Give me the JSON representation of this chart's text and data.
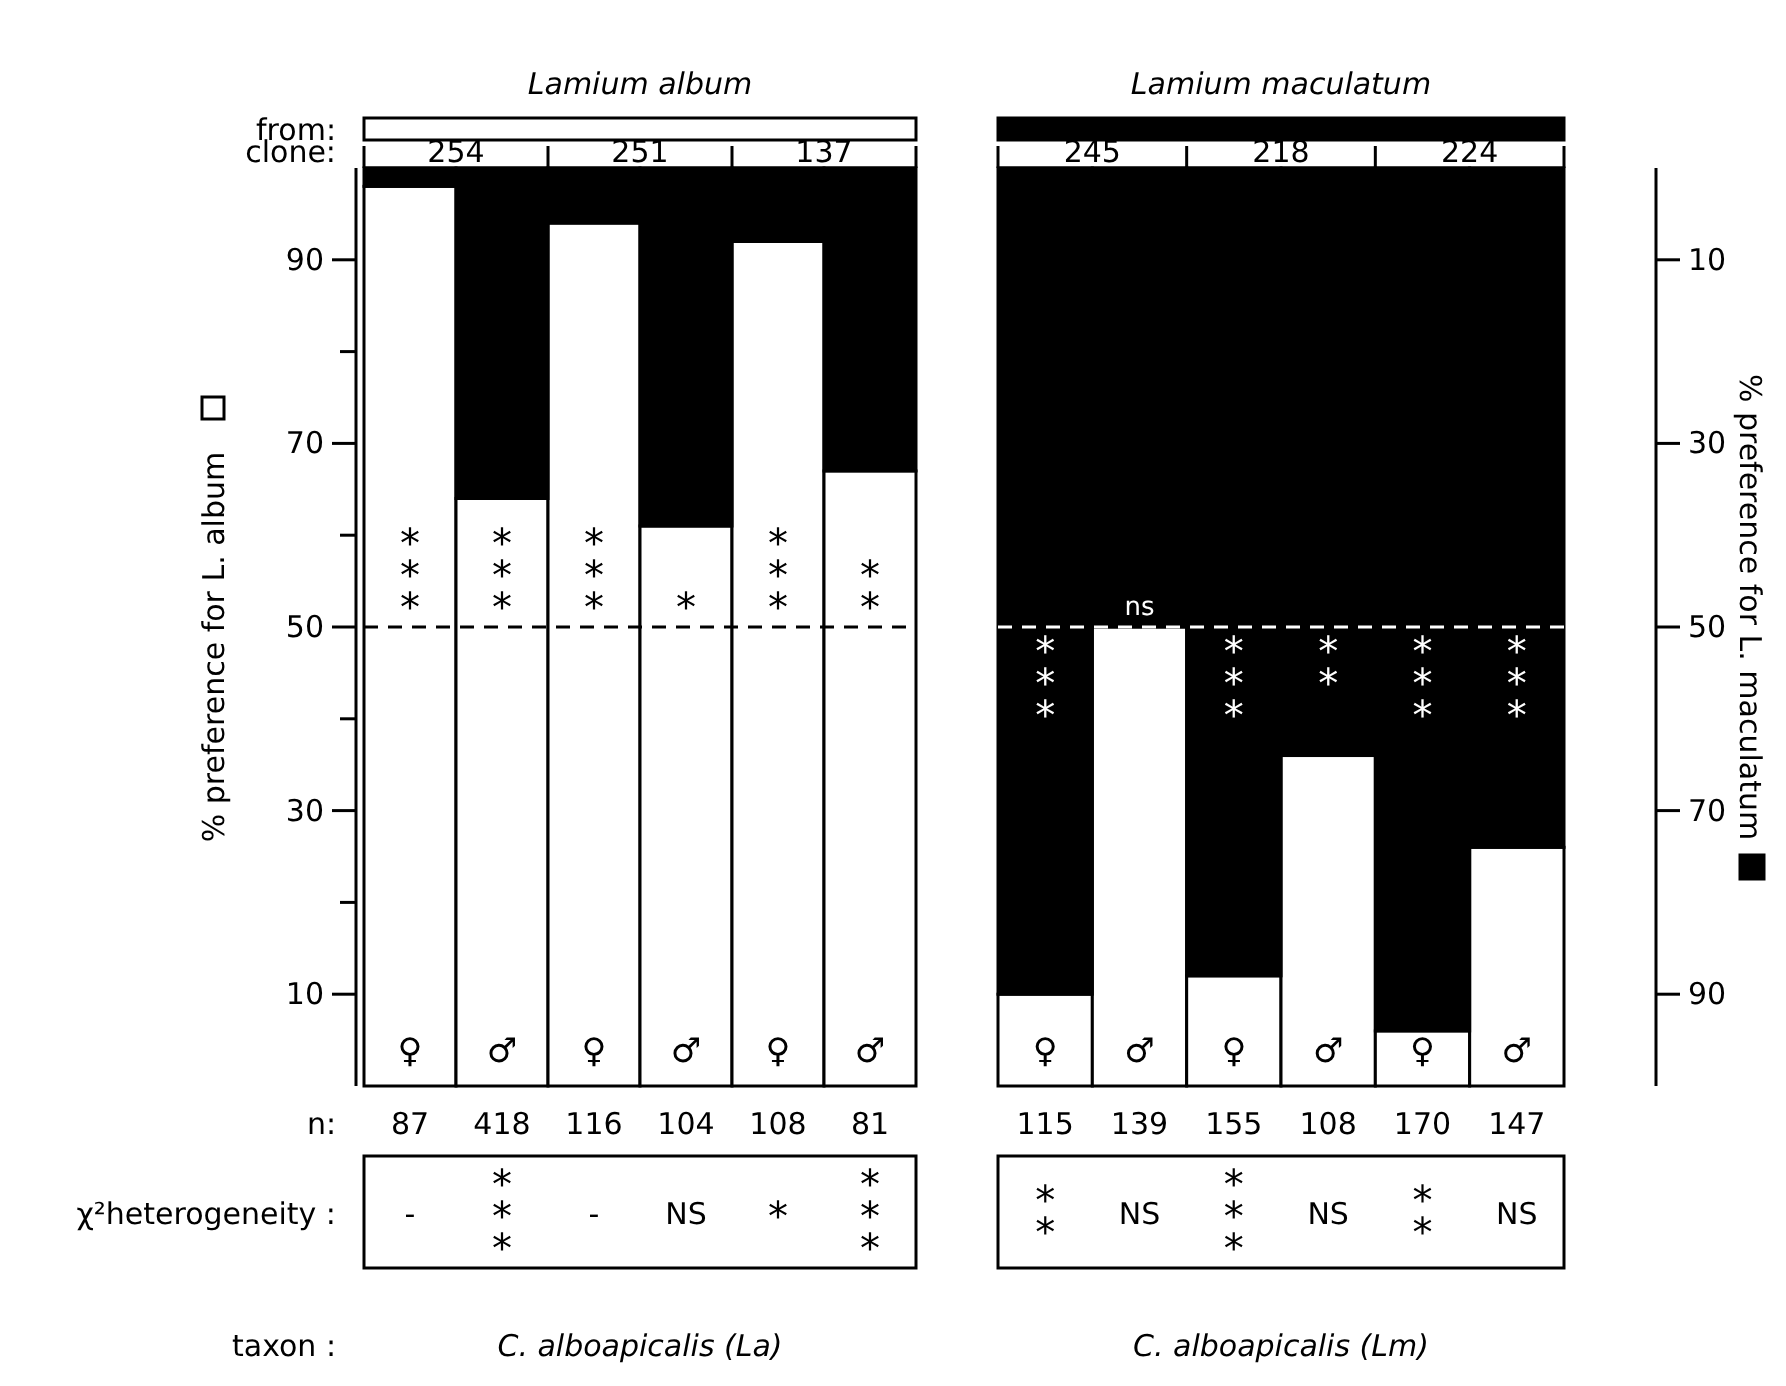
{
  "chart_data": [
    {
      "type": "bar",
      "stacked": true,
      "title": "Lamium album",
      "ylabel": "% preference for L. album",
      "categories": [
        "♀",
        "♂",
        "♀",
        "♂",
        "♀",
        "♂"
      ],
      "series": [
        {
          "color": "#ffffff",
          "values": [
            98,
            64,
            94,
            61,
            92,
            67
          ]
        },
        {
          "color": "#000000",
          "values": [
            2,
            36,
            6,
            39,
            8,
            33
          ]
        }
      ],
      "ylim": [
        0,
        100
      ],
      "yticks": [
        10,
        {
          "value": 20,
          "label": null
        },
        30,
        {
          "value": 40,
          "label": null
        },
        50,
        {
          "value": 60,
          "label": null
        },
        70,
        {
          "value": 80,
          "label": null
        },
        90
      ],
      "ref_lines": [
        {
          "axis": "y",
          "value": 50,
          "color": "#000000",
          "line_style": "dashed"
        }
      ],
      "annotations": [
        "from:",
        "clone:",
        "n:",
        "χ²heterogeneity :",
        "taxon :",
        "254",
        "251",
        "137",
        "87",
        "418",
        "116",
        "104",
        "108",
        "81",
        "-",
        "***",
        "-",
        "NS",
        "*",
        "***",
        "C. alboapicalis (La)",
        "***",
        "***",
        "***",
        "*",
        "***",
        "**"
      ]
    },
    {
      "type": "bar",
      "stacked": true,
      "title": "Lamium maculatum",
      "y2label": "% preference for L. maculatum",
      "categories": [
        "♀",
        "♂",
        "♀",
        "♂",
        "♀",
        "♂"
      ],
      "series": [
        {
          "color": "#ffffff",
          "values": [
            10,
            50,
            12,
            36,
            6,
            26
          ]
        },
        {
          "color": "#000000",
          "values": [
            90,
            50,
            88,
            64,
            94,
            74
          ]
        }
      ],
      "ylim": [
        0,
        100
      ],
      "y2lim": [
        100,
        0
      ],
      "y2ticks": [
        10,
        30,
        50,
        70,
        90
      ],
      "ref_lines": [
        {
          "axis": "y",
          "value": 50,
          "color": "#ffffff",
          "line_style": "dashed"
        }
      ],
      "annotations": [
        "245",
        "218",
        "224",
        "115",
        "139",
        "155",
        "108",
        "170",
        "147",
        "**",
        "NS",
        "***",
        "NS",
        "**",
        "NS",
        "C. alboapicalis (Lm)",
        "***",
        "ns",
        "***",
        "**",
        "***",
        "***"
      ]
    }
  ]
}
